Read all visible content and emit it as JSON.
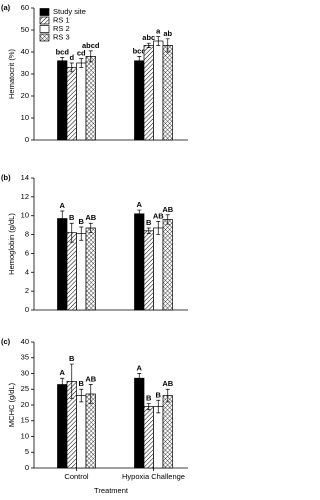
{
  "chart_data": [
    {
      "type": "bar",
      "panel": "(a)",
      "ylabel": "Hematocrit (%)",
      "ylim": [
        0,
        60
      ],
      "yticks": [
        0,
        10,
        20,
        30,
        40,
        50,
        60
      ],
      "series": [
        {
          "name": "Study site",
          "pattern": "solid",
          "color": "#000000",
          "values": [
            36,
            36
          ],
          "errors": [
            1.5,
            2
          ],
          "letters": [
            "bcd",
            "bcd"
          ]
        },
        {
          "name": "RS 1",
          "pattern": "hatch",
          "color": "#000000",
          "values": [
            33,
            43
          ],
          "errors": [
            2,
            1
          ],
          "letters": [
            "d",
            "abc"
          ]
        },
        {
          "name": "RS 2",
          "pattern": "none",
          "color": "#000000",
          "values": [
            35,
            45
          ],
          "errors": [
            2,
            2
          ],
          "letters": [
            "cd",
            "a"
          ]
        },
        {
          "name": "RS 3",
          "pattern": "crosshatch",
          "color": "#000000",
          "values": [
            38,
            43
          ],
          "errors": [
            2.5,
            3
          ],
          "letters": [
            "abcd",
            "ab"
          ]
        }
      ]
    },
    {
      "type": "bar",
      "panel": "(b)",
      "ylabel": "Hemoglobin (g/dL)",
      "ylim": [
        0,
        14
      ],
      "yticks": [
        0,
        2,
        4,
        6,
        8,
        10,
        12,
        14
      ],
      "series": [
        {
          "pattern": "solid",
          "color": "#000000",
          "values": [
            9.7,
            10.2
          ],
          "errors": [
            0.8,
            0.4
          ],
          "letters": [
            "A",
            "A"
          ]
        },
        {
          "pattern": "hatch",
          "color": "#000000",
          "values": [
            8.2,
            8.4
          ],
          "errors": [
            1,
            0.3
          ],
          "letters": [
            "B",
            "B"
          ]
        },
        {
          "pattern": "none",
          "color": "#000000",
          "values": [
            8.1,
            8.7
          ],
          "errors": [
            0.7,
            0.7
          ],
          "letters": [
            "B",
            "AB"
          ]
        },
        {
          "pattern": "crosshatch",
          "color": "#000000",
          "values": [
            8.7,
            9.6
          ],
          "errors": [
            0.5,
            0.5
          ],
          "letters": [
            "AB",
            "AB"
          ]
        }
      ]
    },
    {
      "type": "bar",
      "panel": "(c)",
      "ylabel": "MCHC (g/dL)",
      "xlabel": "Treatment",
      "categories": [
        "Control",
        "Hypoxia Challenge"
      ],
      "ylim": [
        0,
        40
      ],
      "yticks": [
        0,
        5,
        10,
        15,
        20,
        25,
        30,
        35,
        40
      ],
      "series": [
        {
          "pattern": "solid",
          "color": "#000000",
          "values": [
            26.5,
            28.5
          ],
          "errors": [
            2,
            1.5
          ],
          "letters": [
            "A",
            "A"
          ]
        },
        {
          "pattern": "hatch",
          "color": "#000000",
          "values": [
            27.5,
            19.5
          ],
          "errors": [
            5.5,
            1
          ],
          "letters": [
            "B",
            "B"
          ]
        },
        {
          "pattern": "none",
          "color": "#000000",
          "values": [
            23,
            19.5
          ],
          "errors": [
            2,
            2
          ],
          "letters": [
            "B",
            "B"
          ]
        },
        {
          "pattern": "crosshatch",
          "color": "#000000",
          "values": [
            23.5,
            23
          ],
          "errors": [
            3,
            2
          ],
          "letters": [
            "AB",
            "AB"
          ]
        }
      ]
    }
  ]
}
